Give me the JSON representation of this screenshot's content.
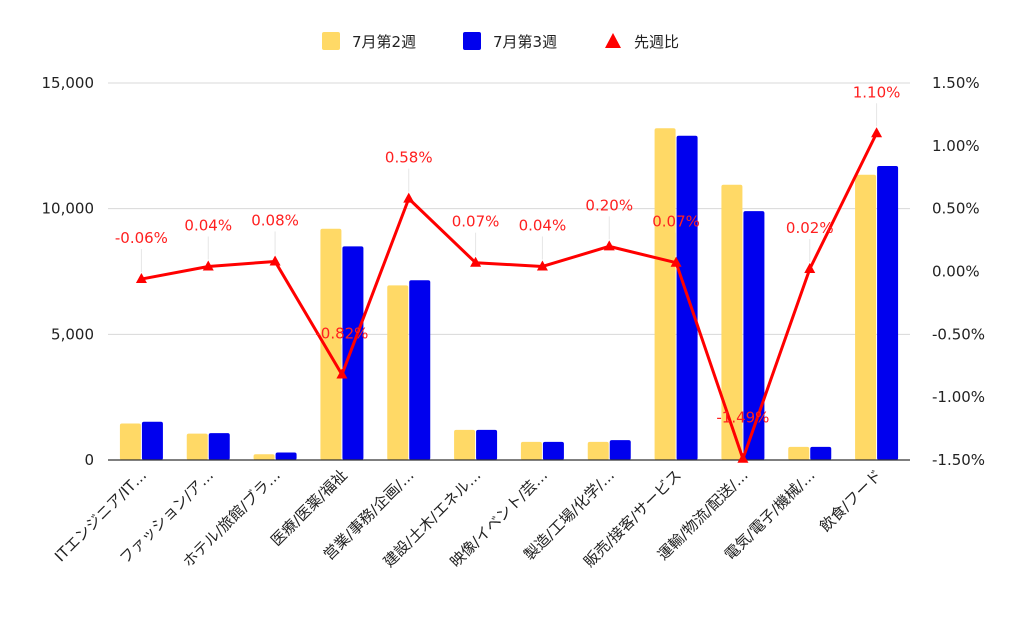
{
  "chart_data": {
    "type": "bar",
    "categories": [
      "ITエンジニア/IT…",
      "ファッション/ア…",
      "ホテル/旅館/ブラ…",
      "医療/医薬/福祉",
      "営業/事務/企画/…",
      "建設/土木/エネル…",
      "映像/イベント/芸…",
      "製造/工場/化学/…",
      "販売/接客/サービス",
      "運輸/物流/配送/…",
      "電気/電子/機械/…",
      "飲食/フード"
    ],
    "series": [
      {
        "name": "7月第2週",
        "type": "bar",
        "axis": "left",
        "color": "#ffd966",
        "values": [
          1450,
          1050,
          230,
          9200,
          6950,
          1200,
          720,
          720,
          13200,
          10950,
          520,
          11350
        ]
      },
      {
        "name": "7月第3週",
        "type": "bar",
        "axis": "left",
        "color": "#0000ee",
        "values": [
          1520,
          1070,
          300,
          8500,
          7150,
          1200,
          720,
          790,
          12900,
          9900,
          520,
          11700
        ]
      },
      {
        "name": "先週比",
        "type": "line",
        "axis": "right",
        "color": "#ff0000",
        "marker": "triangle",
        "values": [
          -0.06,
          0.04,
          0.08,
          -0.82,
          0.58,
          0.07,
          0.04,
          0.2,
          0.07,
          -1.49,
          0.02,
          1.1
        ],
        "labels": [
          "-0.06%",
          "0.04%",
          "0.08%",
          "-0.82%",
          "0.58%",
          "0.07%",
          "0.04%",
          "0.20%",
          "0.07%",
          "-1.49%",
          "0.02%",
          "1.10%"
        ]
      }
    ],
    "y_left": {
      "min": 0,
      "max": 15000,
      "ticks": [
        0,
        5000,
        10000,
        15000
      ],
      "tick_labels": [
        "0",
        "5,000",
        "10,000",
        "15,000"
      ]
    },
    "y_right": {
      "min": -1.5,
      "max": 1.5,
      "ticks": [
        -1.5,
        -1.0,
        -0.5,
        0.0,
        0.5,
        1.0,
        1.5
      ],
      "tick_labels": [
        "-1.50%",
        "-1.00%",
        "-0.50%",
        "0.00%",
        "0.50%",
        "1.00%",
        "1.50%"
      ]
    },
    "grid": true,
    "legend_position": "top-center",
    "title": "",
    "xlabel": "",
    "ylabel": ""
  }
}
